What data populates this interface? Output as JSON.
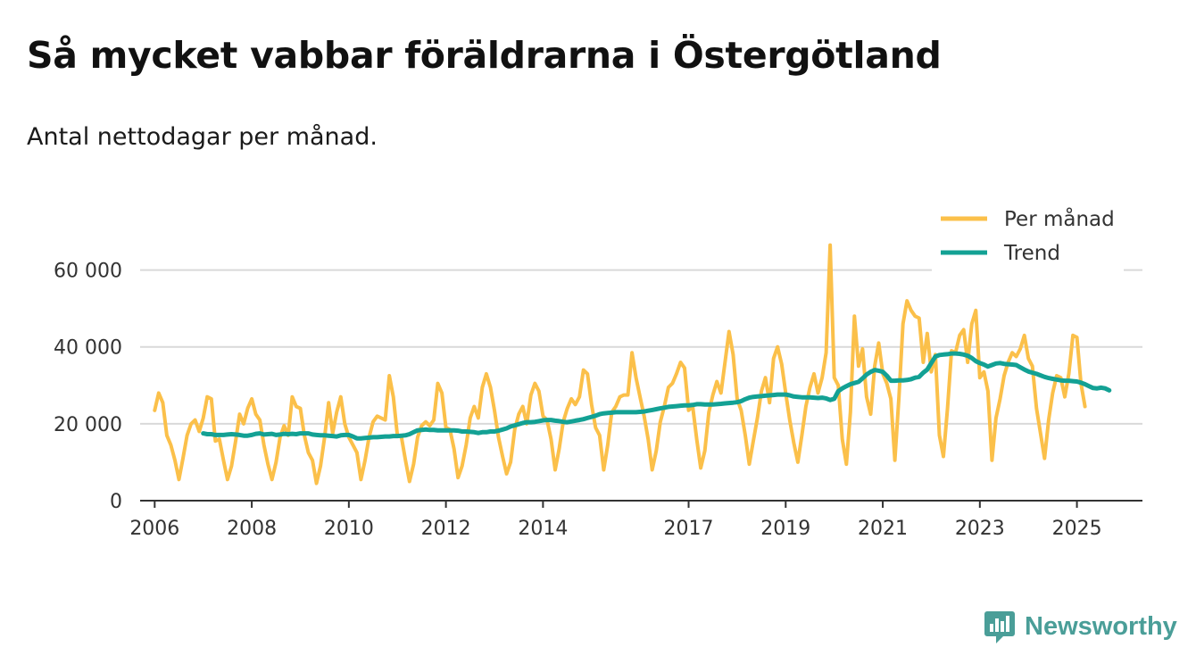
{
  "chart_data": {
    "type": "line",
    "title": "Så mycket vabbar föräldrarna i Östergötland",
    "subtitle": "Antal nettodagar per månad.",
    "xlabel": "",
    "ylabel": "",
    "ylim": [
      0,
      75000
    ],
    "xlim": [
      2005.7,
      2026.35
    ],
    "yticks": [
      0,
      20000,
      40000,
      60000
    ],
    "ytick_labels": [
      "0",
      "20 000",
      "40 000",
      "60 000"
    ],
    "xticks": [
      2006,
      2008,
      2010,
      2012,
      2014,
      2017,
      2019,
      2021,
      2023,
      2025
    ],
    "xtick_labels": [
      "2006",
      "2008",
      "2010",
      "2012",
      "2014",
      "2017",
      "2019",
      "2021",
      "2023",
      "2025"
    ],
    "grid": true,
    "legend_position": "top-right",
    "series": [
      {
        "name": "Per månad",
        "color": "#fbc04a",
        "start_year": 2006,
        "values": [
          23500,
          28000,
          25500,
          17000,
          14500,
          10500,
          5500,
          11000,
          17000,
          20000,
          21000,
          18000,
          21500,
          27000,
          26500,
          15500,
          16000,
          10500,
          5500,
          9000,
          15500,
          22500,
          20000,
          24000,
          26500,
          22500,
          21000,
          14500,
          9500,
          5500,
          10000,
          16500,
          19500,
          17000,
          27000,
          24500,
          24000,
          17000,
          12500,
          10500,
          4500,
          9000,
          16500,
          25500,
          17500,
          23000,
          27000,
          20000,
          16500,
          14500,
          12500,
          5500,
          10500,
          16500,
          20500,
          22000,
          21500,
          21000,
          32500,
          27000,
          17000,
          16500,
          10500,
          5000,
          9500,
          16500,
          19500,
          20500,
          19500,
          21000,
          30500,
          28000,
          19000,
          18500,
          13500,
          6000,
          9000,
          14500,
          21500,
          24500,
          21500,
          29500,
          33000,
          29500,
          23500,
          16500,
          11500,
          7000,
          10000,
          18500,
          22500,
          24500,
          20000,
          27500,
          30500,
          28500,
          22000,
          21000,
          16000,
          8000,
          13500,
          20500,
          24000,
          26500,
          25000,
          27000,
          34000,
          33000,
          25000,
          19000,
          17000,
          8000,
          14500,
          23000,
          24500,
          27000,
          27500,
          27500,
          38500,
          32000,
          27000,
          22000,
          16000,
          8000,
          13000,
          20500,
          24500,
          29500,
          30500,
          33000,
          36000,
          34500,
          23500,
          24500,
          16000,
          8500,
          13000,
          23000,
          27500,
          31000,
          28000,
          36000,
          44000,
          38000,
          26500,
          23500,
          17000,
          9500,
          15500,
          21500,
          28500,
          32000,
          25500,
          37000,
          40000,
          35500,
          28000,
          21000,
          15000,
          10000,
          17000,
          24500,
          29500,
          33000,
          28000,
          32000,
          38500,
          66500,
          32000,
          30000,
          16000,
          9500,
          23000,
          48000,
          35000,
          39500,
          27000,
          22500,
          35000,
          41000,
          33000,
          30500,
          26500,
          10500,
          27000,
          46000,
          52000,
          49500,
          48000,
          47500,
          36000,
          43500,
          33500,
          38000,
          17000,
          11500,
          24000,
          39000,
          38500,
          43000,
          44500,
          36000,
          46000,
          49500,
          32000,
          33500,
          28500,
          10500,
          21500,
          26500,
          32500,
          36000,
          38500,
          37500,
          39500,
          43000,
          37000,
          35000,
          24000,
          17500,
          11000,
          21000,
          28000,
          32500,
          32000,
          27000,
          33000,
          43000,
          42500,
          30500,
          24500
        ]
      },
      {
        "name": "Trend",
        "color": "#13a194",
        "start_year": 2007,
        "values": [
          17500,
          17300,
          17300,
          17100,
          17100,
          17100,
          17200,
          17300,
          17200,
          17100,
          16900,
          16900,
          17100,
          17400,
          17500,
          17200,
          17300,
          17400,
          17100,
          17200,
          17400,
          17300,
          17400,
          17300,
          17500,
          17500,
          17500,
          17200,
          17100,
          17000,
          17000,
          16900,
          16800,
          16700,
          17000,
          17100,
          17100,
          16700,
          16200,
          16200,
          16300,
          16400,
          16500,
          16500,
          16600,
          16700,
          16700,
          16800,
          16800,
          16900,
          17000,
          17300,
          17800,
          18300,
          18400,
          18500,
          18400,
          18400,
          18300,
          18300,
          18300,
          18300,
          18300,
          18200,
          18000,
          18000,
          17900,
          17800,
          17600,
          17800,
          17800,
          18000,
          18000,
          18200,
          18500,
          18800,
          19300,
          19600,
          19900,
          20200,
          20400,
          20400,
          20500,
          20700,
          20900,
          21000,
          21000,
          20800,
          20700,
          20500,
          20400,
          20600,
          20800,
          21000,
          21200,
          21500,
          21800,
          22100,
          22500,
          22700,
          22800,
          22900,
          23000,
          23000,
          23000,
          23000,
          23000,
          23000,
          23100,
          23200,
          23400,
          23600,
          23800,
          24000,
          24200,
          24400,
          24500,
          24600,
          24700,
          24800,
          24800,
          24900,
          25100,
          25100,
          25000,
          25000,
          25000,
          25100,
          25200,
          25300,
          25400,
          25500,
          25600,
          25900,
          26400,
          26800,
          27000,
          27100,
          27200,
          27300,
          27400,
          27500,
          27600,
          27600,
          27600,
          27400,
          27100,
          27000,
          26900,
          26900,
          26900,
          26800,
          26700,
          26800,
          26600,
          26200,
          26500,
          28500,
          29200,
          29800,
          30300,
          30600,
          30900,
          31800,
          32800,
          33500,
          34000,
          33800,
          33500,
          32500,
          31200,
          31200,
          31300,
          31300,
          31400,
          31600,
          32000,
          32200,
          33300,
          34100,
          35800,
          37500,
          37900,
          38000,
          38100,
          38300,
          38300,
          38200,
          38000,
          37700,
          37100,
          36300,
          35800,
          35400,
          34900,
          35300,
          35700,
          35800,
          35600,
          35500,
          35400,
          35300,
          34700,
          34100,
          33600,
          33300,
          33000,
          32600,
          32200,
          31900,
          31700,
          31500,
          31300,
          31200,
          31200,
          31100,
          31000,
          30700,
          30300,
          29800,
          29300,
          29200,
          29400,
          29200,
          28700
        ]
      }
    ]
  },
  "brand": {
    "name": "Newsworthy",
    "color": "#4a9e98"
  }
}
